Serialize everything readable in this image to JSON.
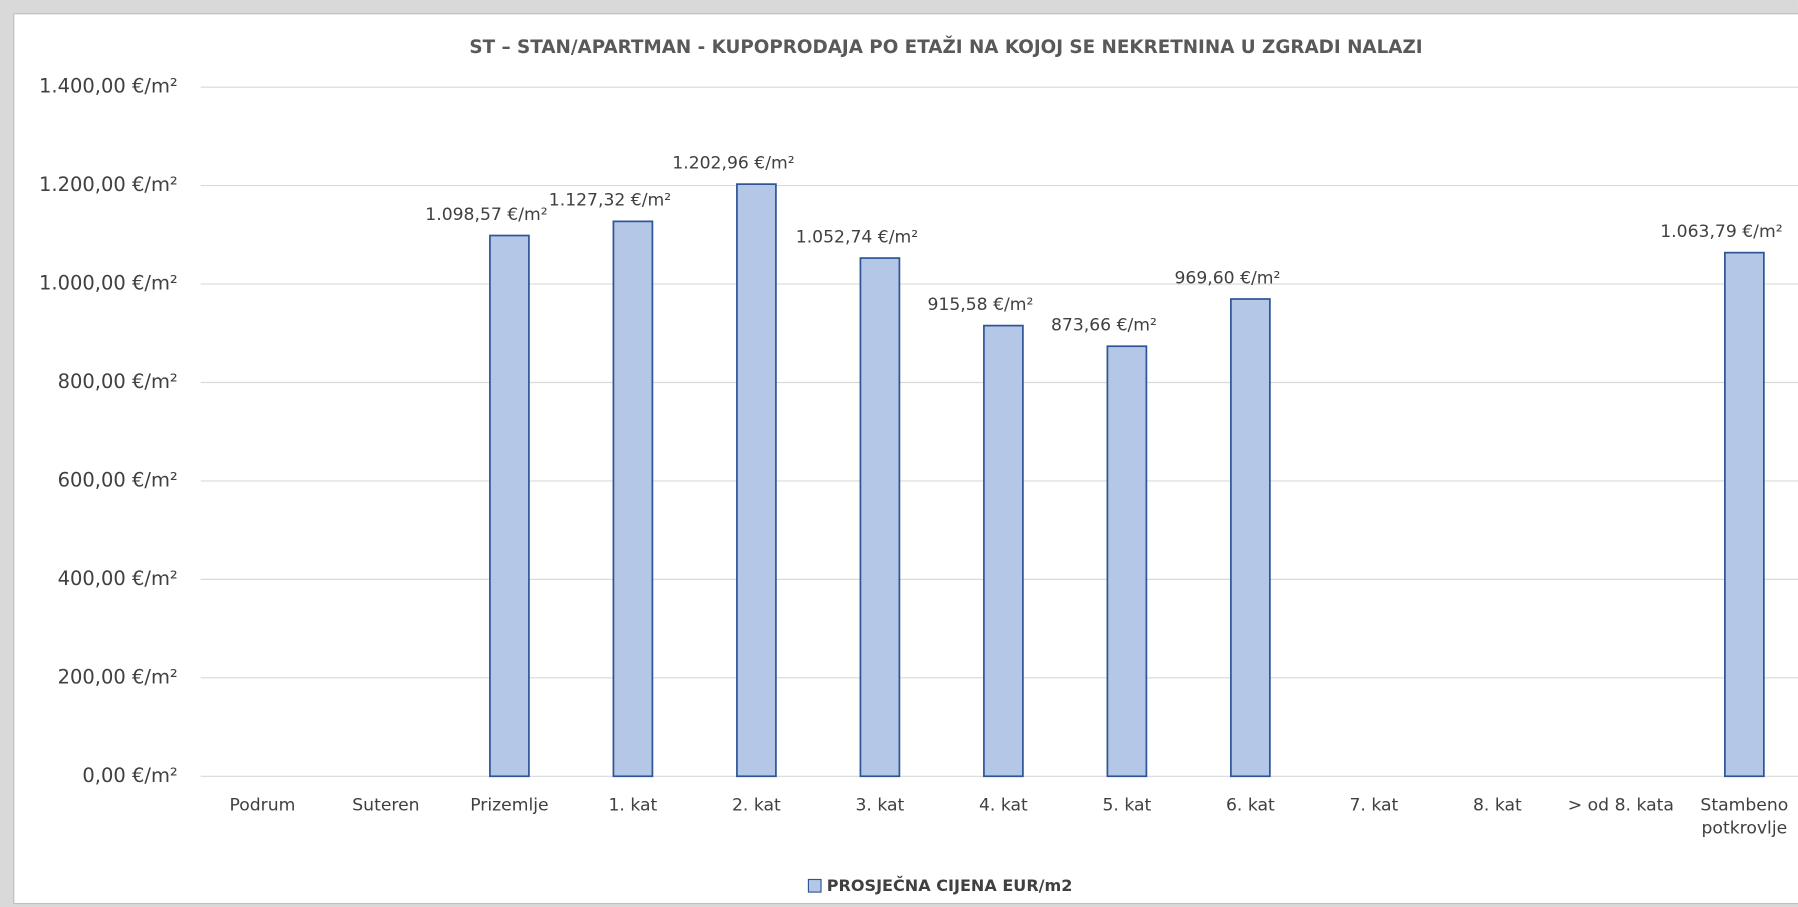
{
  "chart_data": {
    "type": "bar",
    "title": "ST – STAN/APARTMAN - KUPOPRODAJA PO ETAŽI NA KOJOJ SE NEKRETNINA U ZGRADI NALAZI",
    "categories": [
      "Podrum",
      "Suteren",
      "Prizemlje",
      "1. kat",
      "2. kat",
      "3. kat",
      "4. kat",
      "5. kat",
      "6. kat",
      "7. kat",
      "8. kat",
      "> od 8. kata",
      "Stambeno potkrovlje"
    ],
    "series": [
      {
        "name": "PROSJEČNA CIJENA EUR/m2",
        "color": "#b4c7e7",
        "values": [
          null,
          null,
          1098.57,
          1127.32,
          1202.96,
          1052.74,
          915.58,
          873.66,
          969.6,
          null,
          null,
          null,
          1063.79
        ],
        "value_labels": [
          null,
          null,
          "1.098,57 €/m²",
          "1.127,32 €/m²",
          "1.202,96 €/m²",
          "1.052,74 €/m²",
          "915,58 €/m²",
          "873,66 €/m²",
          "969,60 €/m²",
          null,
          null,
          null,
          "1.063,79 €/m²"
        ]
      }
    ],
    "ylim": [
      0,
      1400
    ],
    "yticks": [
      {
        "value": 0,
        "label": "0,00 €/m²"
      },
      {
        "value": 200,
        "label": "200,00 €/m²"
      },
      {
        "value": 400,
        "label": "400,00 €/m²"
      },
      {
        "value": 600,
        "label": "600,00 €/m²"
      },
      {
        "value": 800,
        "label": "800,00 €/m²"
      },
      {
        "value": 1000,
        "label": "1.000,00 €/m²"
      },
      {
        "value": 1200,
        "label": "1.200,00 €/m²"
      },
      {
        "value": 1400,
        "label": "1.400,00 €/m²"
      }
    ],
    "grid": true,
    "legend": "bottom"
  }
}
